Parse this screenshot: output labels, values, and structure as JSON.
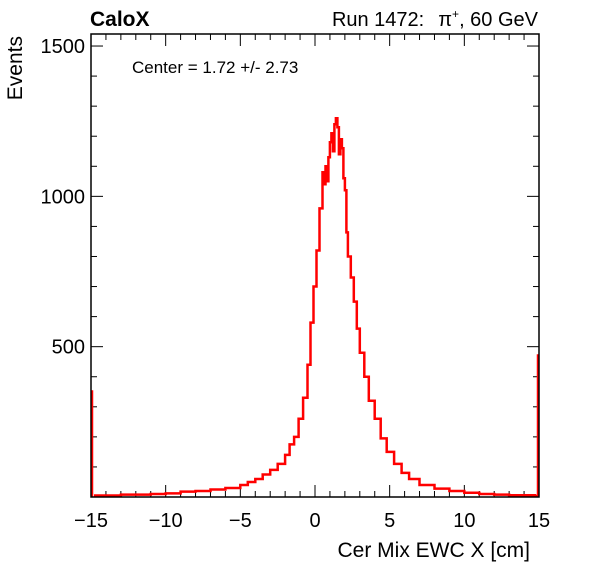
{
  "header": {
    "experiment": "CaloX",
    "run_prefix": "Run 1472:",
    "particle_base": "π",
    "particle_charge": "+",
    "energy": ", 60 GeV"
  },
  "annotation": "Center = 1.72 +/- 2.73",
  "colors": {
    "histogram": "#ff0000",
    "axes": "#000000"
  },
  "chart_data": {
    "type": "line",
    "style": "step histogram",
    "xlabel": "Cer Mix EWC X [cm]",
    "ylabel": "Events",
    "xlim": [
      -15,
      15
    ],
    "ylim": [
      0,
      1540
    ],
    "x_ticks": [
      -15,
      -10,
      -5,
      0,
      5,
      10,
      15
    ],
    "x_tick_labels": [
      "−15",
      "−10",
      "−5",
      "0",
      "5",
      "10",
      "15"
    ],
    "y_ticks": [
      500,
      1000,
      1500
    ],
    "y_tick_labels": [
      "500",
      "1000",
      "1500"
    ],
    "grid": false,
    "legend": "none",
    "edge_bins": {
      "x_left": -15,
      "y_left": 355,
      "x_right": 15,
      "y_right": 475
    },
    "x": [
      -14.8,
      -13,
      -11,
      -10,
      -9,
      -8,
      -7,
      -6,
      -5,
      -4.5,
      -4,
      -3.5,
      -3,
      -2.5,
      -2,
      -1.7,
      -1.4,
      -1.1,
      -0.8,
      -0.5,
      -0.3,
      -0.1,
      0.1,
      0.3,
      0.5,
      0.6,
      0.7,
      0.8,
      0.9,
      1.0,
      1.1,
      1.2,
      1.3,
      1.4,
      1.5,
      1.6,
      1.7,
      1.8,
      1.9,
      2.0,
      2.1,
      2.2,
      2.4,
      2.6,
      2.8,
      3.0,
      3.3,
      3.6,
      4.0,
      4.4,
      4.8,
      5.3,
      5.8,
      6.3,
      7.0,
      8.0,
      9.0,
      10.0,
      11.0,
      12.0,
      13.0,
      14.0,
      14.8
    ],
    "y": [
      5,
      8,
      10,
      12,
      18,
      20,
      25,
      30,
      40,
      50,
      60,
      75,
      90,
      110,
      140,
      175,
      200,
      260,
      330,
      440,
      580,
      700,
      820,
      960,
      1080,
      1040,
      1100,
      1050,
      1130,
      1180,
      1210,
      1150,
      1240,
      1260,
      1230,
      1140,
      1190,
      1160,
      1060,
      1020,
      880,
      800,
      730,
      650,
      560,
      480,
      400,
      320,
      260,
      195,
      150,
      110,
      80,
      60,
      40,
      28,
      20,
      14,
      10,
      8,
      6,
      6,
      8
    ]
  }
}
